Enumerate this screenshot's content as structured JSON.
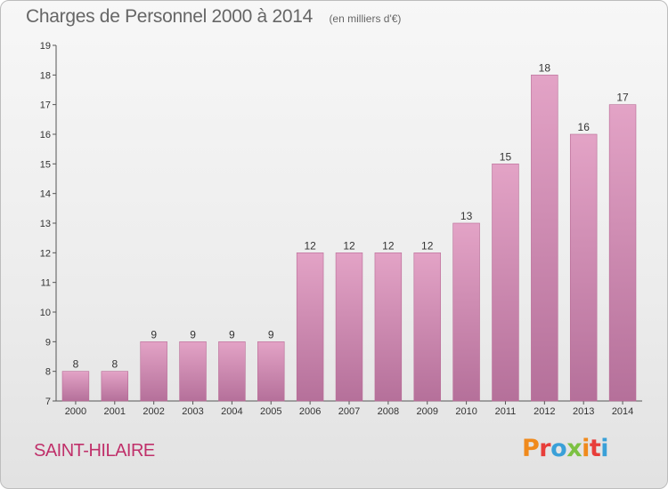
{
  "header": {
    "title": "Charges de Personnel 2000 à 2014",
    "subtitle": "(en milliers d'€)"
  },
  "footer": {
    "city": "SAINT-HILAIRE",
    "logo": "Proxiti",
    "logo_colors": [
      "#f08a1c",
      "#e83e3a",
      "#3aa0d8",
      "#7cc142",
      "#f08a1c",
      "#e83e3a",
      "#3aa0d8"
    ]
  },
  "chart_data": {
    "type": "bar",
    "title": "Charges de Personnel 2000 à 2014",
    "subtitle": "(en milliers d'€)",
    "xlabel": "",
    "ylabel": "",
    "categories": [
      "2000",
      "2001",
      "2002",
      "2003",
      "2004",
      "2005",
      "2006",
      "2007",
      "2008",
      "2009",
      "2010",
      "2011",
      "2012",
      "2013",
      "2014"
    ],
    "values": [
      8,
      8,
      9,
      9,
      9,
      9,
      12,
      12,
      12,
      12,
      13,
      15,
      18,
      16,
      17
    ],
    "ylim": [
      7,
      19
    ],
    "yticks": [
      7,
      8,
      9,
      10,
      11,
      12,
      13,
      14,
      15,
      16,
      17,
      18,
      19
    ],
    "grid": false,
    "bar_color": "#d98bb5",
    "bar_color_dark": "#b86a95"
  }
}
